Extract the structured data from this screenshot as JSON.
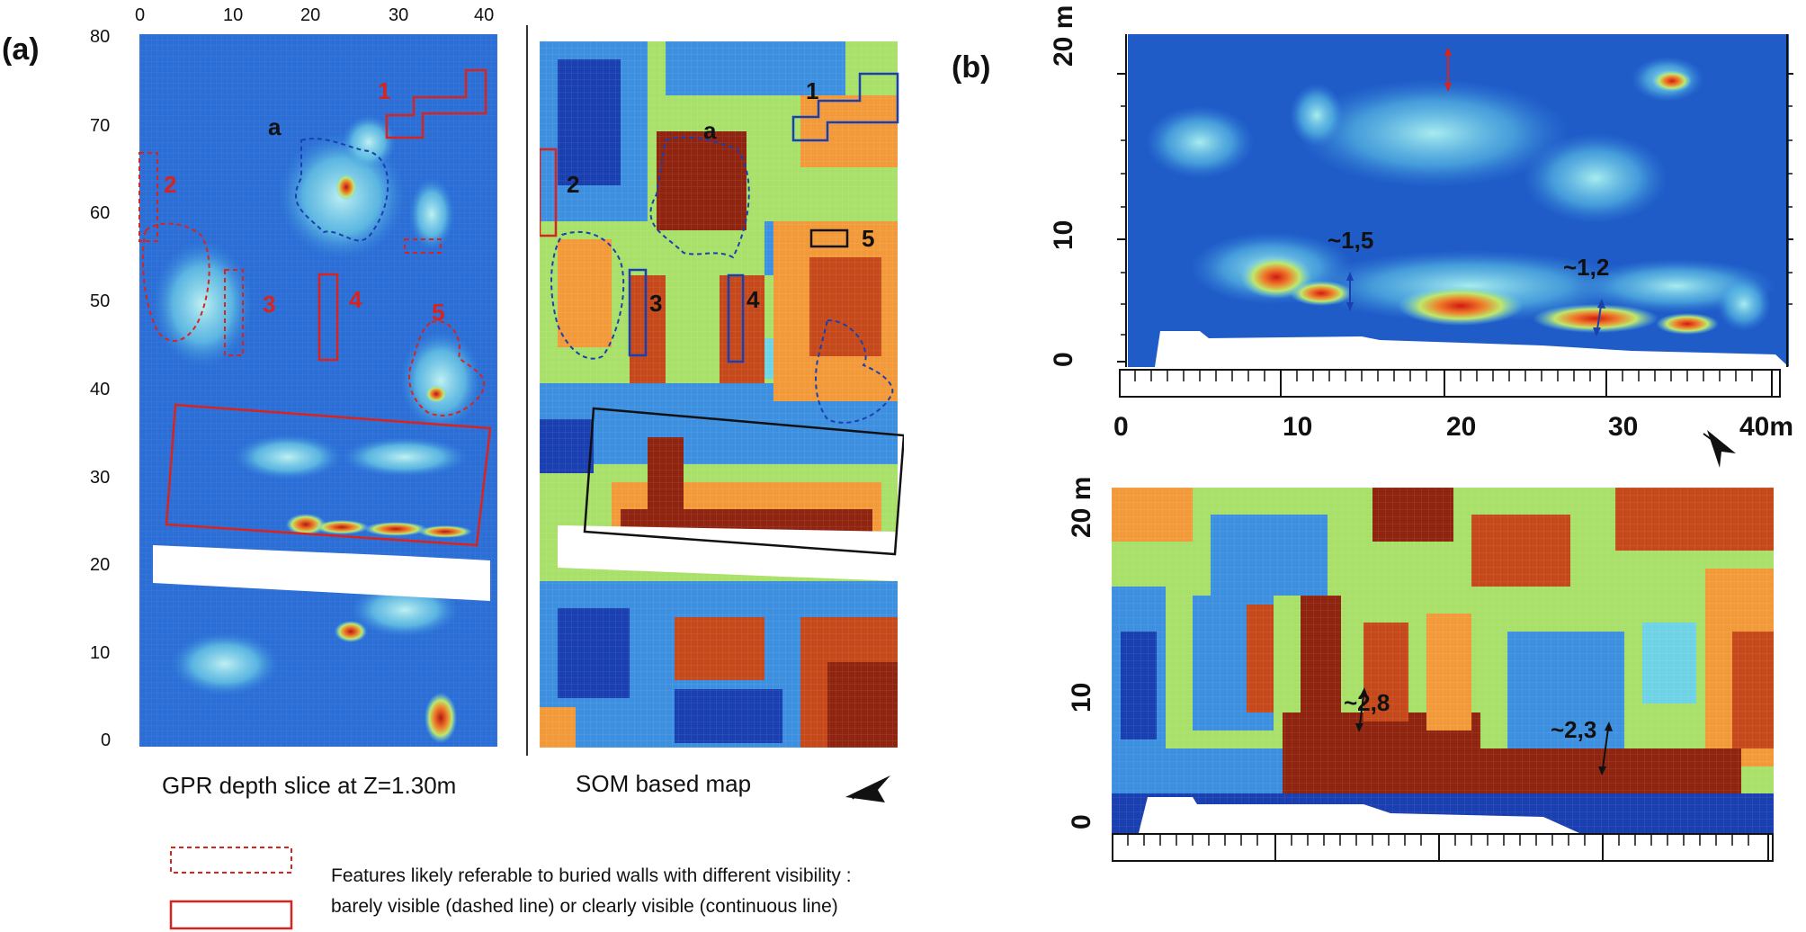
{
  "panel_a": {
    "letter": "(a)",
    "top_axis": [
      "0",
      "10",
      "20",
      "30",
      "40"
    ],
    "left_axis": [
      "80",
      "70",
      "60",
      "50",
      "40",
      "30",
      "20",
      "10",
      "0"
    ],
    "gpr_labels": [
      "1",
      "2",
      "3",
      "4",
      "5",
      "a"
    ],
    "som_labels": [
      "1",
      "2",
      "3",
      "4",
      "5",
      "a"
    ],
    "gpr_caption": "GPR depth slice at Z=1.30m",
    "som_caption": "SOM based map"
  },
  "panel_b": {
    "letter": "(b)",
    "top_map_y_axis": [
      "20 m",
      "10",
      "0"
    ],
    "top_map_x_axis": [
      "0",
      "10",
      "20",
      "30",
      "40m"
    ],
    "top_map_annotations": [
      "~1,5",
      "~1,2"
    ],
    "bottom_map_y_axis": [
      "20 m",
      "10",
      "0"
    ],
    "bottom_map_annotations": [
      "~2,8",
      "~2,3"
    ]
  },
  "legend": {
    "line1": "Features likely referable to buried walls with different visibility :",
    "line2": "barely visible (dashed line) or clearly visible (continuous line)"
  },
  "colors": {
    "deep_blue": "#1a3fb0",
    "blue": "#2b6fd6",
    "cyan": "#6fd3e6",
    "green": "#a8e06a",
    "orange": "#f29a3a",
    "dark_red": "#8f2410",
    "annotation_red": "#d8231f"
  },
  "icons": [
    "north-arrow-icon"
  ]
}
